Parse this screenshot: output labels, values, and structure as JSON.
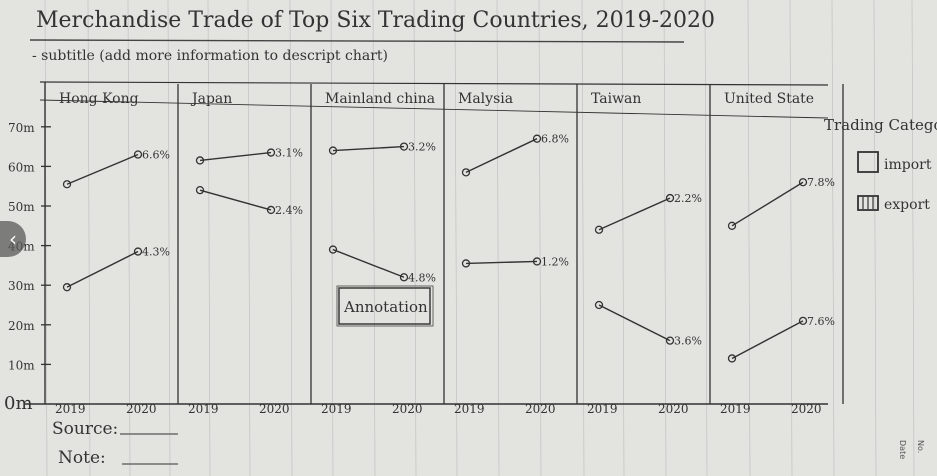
{
  "chart_data": {
    "type": "line",
    "title": "Merchandise Trade of Top Six Trading Countries, 2019-2020",
    "subtitle": "- subtitle (add more information to descript chart)",
    "y_ticks": [
      "70m",
      "60m",
      "50m",
      "40m",
      "30m",
      "20m",
      "10m",
      "0m"
    ],
    "ylim": [
      0,
      70
    ],
    "x_categories": [
      "2019",
      "2020"
    ],
    "legend": {
      "title": "Trading Category",
      "items": [
        "import",
        "export"
      ],
      "placement": "right"
    },
    "annotation": "Annotation",
    "panels": [
      {
        "name": "Hong Kong",
        "series": [
          {
            "category": "import",
            "values": [
              29.5,
              38.5
            ],
            "label": "4.3%"
          },
          {
            "category": "export",
            "values": [
              55.5,
              63
            ],
            "label": "6.6%"
          }
        ]
      },
      {
        "name": "Japan",
        "series": [
          {
            "category": "import",
            "values": [
              61.5,
              63.5
            ],
            "label": "3.1%"
          },
          {
            "category": "export",
            "values": [
              54,
              49
            ],
            "label": "2.4%"
          }
        ]
      },
      {
        "name": "Mainland china",
        "series": [
          {
            "category": "import",
            "values": [
              64,
              65
            ],
            "label": "3.2%"
          },
          {
            "category": "export",
            "values": [
              39,
              32
            ],
            "label": "4.8%"
          }
        ]
      },
      {
        "name": "Malysia",
        "series": [
          {
            "category": "import",
            "values": [
              58.5,
              67
            ],
            "label": "6.8%"
          },
          {
            "category": "export",
            "values": [
              35.5,
              36
            ],
            "label": "1.2%"
          }
        ]
      },
      {
        "name": "Taiwan",
        "series": [
          {
            "category": "import",
            "values": [
              44,
              52
            ],
            "label": "2.2%"
          },
          {
            "category": "export",
            "values": [
              25,
              16
            ],
            "label": "3.6%"
          }
        ]
      },
      {
        "name": "United State",
        "series": [
          {
            "category": "import",
            "values": [
              45,
              56
            ],
            "label": "7.8%"
          },
          {
            "category": "export",
            "values": [
              11.5,
              21
            ],
            "label": "7.6%"
          }
        ]
      }
    ]
  },
  "footer": {
    "source_label": "Source:",
    "note_label": "Note:",
    "page_no_label": "No.",
    "date_label": "Date"
  },
  "nav": {
    "prev_label": "‹"
  },
  "colors": {
    "ink": "#333333",
    "paper": "#e3e3df",
    "rule": "#9aa0a3"
  }
}
